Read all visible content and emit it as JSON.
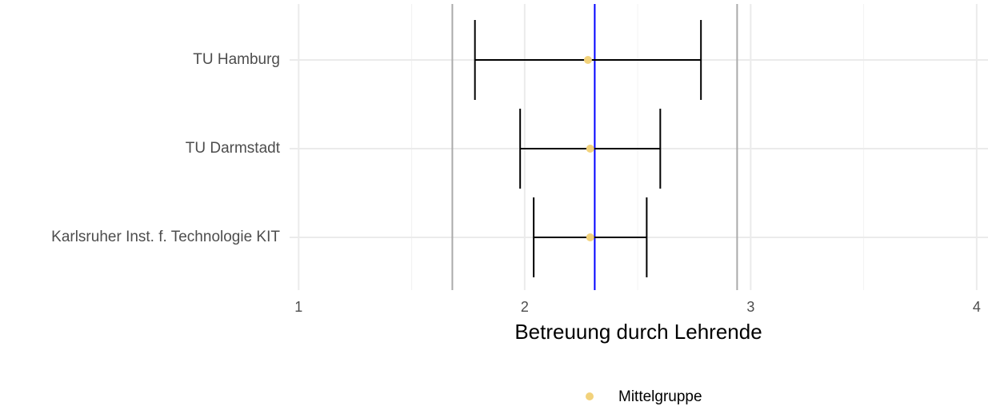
{
  "chart_data": {
    "type": "errorbar",
    "categories": [
      "TU Hamburg",
      "TU Darmstadt",
      "Karlsruher Inst. f. Technologie KIT"
    ],
    "series": [
      {
        "name": "Mittelgruppe",
        "color": "#f2d27b",
        "values": [
          2.28,
          2.29,
          2.29
        ],
        "lower": [
          1.78,
          1.98,
          2.04
        ],
        "upper": [
          2.78,
          2.6,
          2.54
        ]
      }
    ],
    "xlabel": "Betreuung durch Lehrende",
    "xlim": [
      0.96,
      4.05
    ],
    "xticks": [
      1,
      2,
      3,
      4
    ],
    "minor_xticks": [
      1.5,
      2.5,
      3.5
    ],
    "vlines": [
      {
        "value": 2.31,
        "color": "#0000ff"
      },
      {
        "value": 1.68,
        "color": "#aaaaaa"
      },
      {
        "value": 2.94,
        "color": "#aaaaaa"
      }
    ],
    "grid": true,
    "legend": "bottom"
  }
}
